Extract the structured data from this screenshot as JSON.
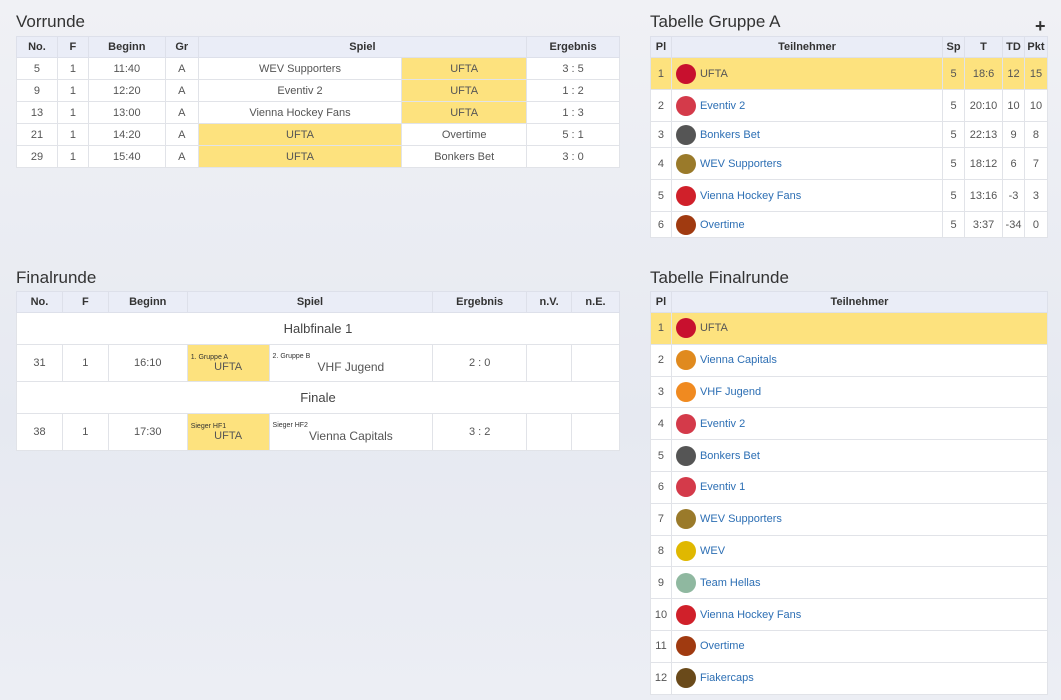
{
  "vorrunde": {
    "title": "Vorrunde",
    "headers": [
      "No.",
      "F",
      "Beginn",
      "Gr",
      "Spiel",
      "Ergebnis"
    ],
    "rows": [
      {
        "no": "5",
        "f": "1",
        "beginn": "11:40",
        "gr": "A",
        "home": "WEV Supporters",
        "away": "UFTA",
        "result": "3 : 5",
        "winner": "away"
      },
      {
        "no": "9",
        "f": "1",
        "beginn": "12:20",
        "gr": "A",
        "home": "Eventiv 2",
        "away": "UFTA",
        "result": "1 : 2",
        "winner": "away"
      },
      {
        "no": "13",
        "f": "1",
        "beginn": "13:00",
        "gr": "A",
        "home": "Vienna Hockey Fans",
        "away": "UFTA",
        "result": "1 : 3",
        "winner": "away"
      },
      {
        "no": "21",
        "f": "1",
        "beginn": "14:20",
        "gr": "A",
        "home": "UFTA",
        "away": "Overtime",
        "result": "5 : 1",
        "winner": "home"
      },
      {
        "no": "29",
        "f": "1",
        "beginn": "15:40",
        "gr": "A",
        "home": "UFTA",
        "away": "Bonkers Bet",
        "result": "3 : 0",
        "winner": "home"
      }
    ]
  },
  "gruppeA": {
    "title": "Tabelle Gruppe A",
    "add_icon": "+",
    "headers": [
      "Pl",
      "Teilnehmer",
      "Sp",
      "T",
      "TD",
      "Pkt"
    ],
    "rows": [
      {
        "pl": "1",
        "team": "UFTA",
        "sp": "5",
        "t": "18:6",
        "td": "12",
        "pkt": "15",
        "color": "#c8102e"
      },
      {
        "pl": "2",
        "team": "Eventiv 2",
        "sp": "5",
        "t": "20:10",
        "td": "10",
        "pkt": "10",
        "color": "#d43a4a"
      },
      {
        "pl": "3",
        "team": "Bonkers Bet",
        "sp": "5",
        "t": "22:13",
        "td": "9",
        "pkt": "8",
        "color": "#555555"
      },
      {
        "pl": "4",
        "team": "WEV Supporters",
        "sp": "5",
        "t": "18:12",
        "td": "6",
        "pkt": "7",
        "color": "#9a7a2a"
      },
      {
        "pl": "5",
        "team": "Vienna Hockey Fans",
        "sp": "5",
        "t": "13:16",
        "td": "-3",
        "pkt": "3",
        "color": "#d0202a"
      },
      {
        "pl": "6",
        "team": "Overtime",
        "sp": "5",
        "t": "3:37",
        "td": "-34",
        "pkt": "0",
        "color": "#a03a10"
      }
    ]
  },
  "finalrunde": {
    "title": "Finalrunde",
    "headers": [
      "No.",
      "F",
      "Beginn",
      "Spiel",
      "Ergebnis",
      "n.V.",
      "n.E."
    ],
    "rounds": [
      {
        "name": "Halbfinale 1",
        "no": "31",
        "f": "1",
        "beginn": "16:10",
        "home_label": "1. Gruppe A",
        "home": "UFTA",
        "away_label": "2. Gruppe B",
        "away": "VHF Jugend",
        "result": "2 : 0",
        "nv": "",
        "ne": ""
      },
      {
        "name": "Finale",
        "no": "38",
        "f": "1",
        "beginn": "17:30",
        "home_label": "Sieger HF1",
        "home": "UFTA",
        "away_label": "Sieger HF2",
        "away": "Vienna Capitals",
        "result": "3 : 2",
        "nv": "",
        "ne": ""
      }
    ]
  },
  "tabFinal": {
    "title": "Tabelle Finalrunde",
    "headers": [
      "Pl",
      "Teilnehmer"
    ],
    "rows": [
      {
        "pl": "1",
        "team": "UFTA",
        "color": "#c8102e"
      },
      {
        "pl": "2",
        "team": "Vienna Capitals",
        "color": "#e08a1e"
      },
      {
        "pl": "3",
        "team": "VHF Jugend",
        "color": "#f08a20"
      },
      {
        "pl": "4",
        "team": "Eventiv 2",
        "color": "#d43a4a"
      },
      {
        "pl": "5",
        "team": "Bonkers Bet",
        "color": "#555555"
      },
      {
        "pl": "6",
        "team": "Eventiv 1",
        "color": "#d43a4a"
      },
      {
        "pl": "7",
        "team": "WEV Supporters",
        "color": "#9a7a2a"
      },
      {
        "pl": "8",
        "team": "WEV",
        "color": "#e0b800"
      },
      {
        "pl": "9",
        "team": "Team Hellas",
        "color": "#8fb8a0"
      },
      {
        "pl": "10",
        "team": "Vienna Hockey Fans",
        "color": "#d0202a"
      },
      {
        "pl": "11",
        "team": "Overtime",
        "color": "#a03a10"
      },
      {
        "pl": "12",
        "team": "Fiakercaps",
        "color": "#6a4a1a"
      }
    ]
  }
}
